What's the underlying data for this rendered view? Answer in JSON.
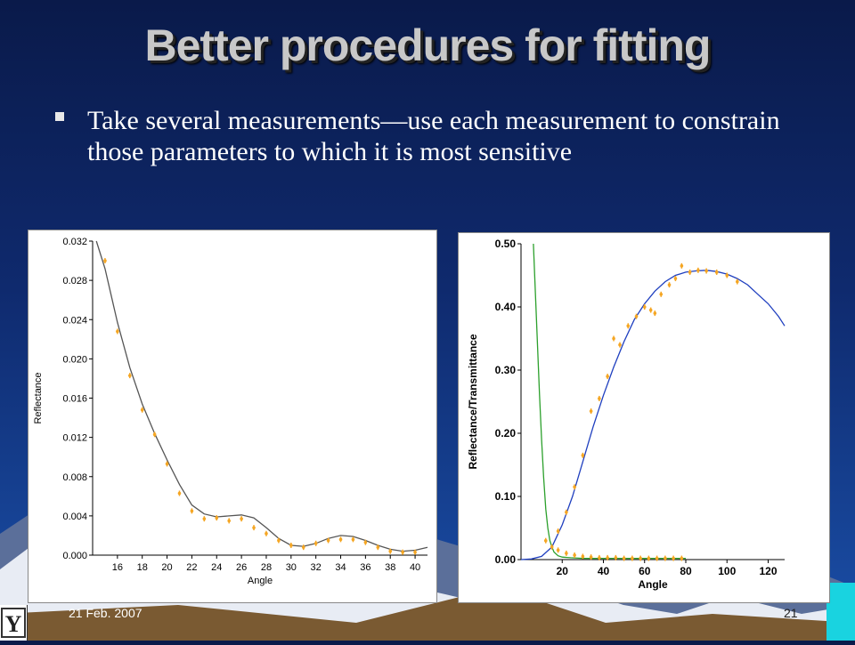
{
  "slide": {
    "title": "Better procedures for fitting",
    "bullet": "Take several measurements—use each measurement to constrain those parameters to which it is most sensitive",
    "footer_date": "21 Feb. 2007",
    "page_number": "21",
    "logo": "Y"
  },
  "colors": {
    "fit_line": "#555555",
    "data_points": "#f5a623",
    "reflectance_green": "#2ca02c",
    "transmittance_blue": "#1f3fbf"
  },
  "chart_data": [
    {
      "type": "scatter",
      "title": "",
      "xlabel": "Angle",
      "ylabel": "Reflectance",
      "xlim": [
        14,
        41
      ],
      "ylim": [
        0,
        0.032
      ],
      "x_ticks": [
        16,
        18,
        20,
        22,
        24,
        26,
        28,
        30,
        32,
        34,
        36,
        38,
        40
      ],
      "y_ticks": [
        "0.000",
        "0.004",
        "0.008",
        "0.012",
        "0.016",
        "0.020",
        "0.024",
        "0.028",
        "0.032"
      ],
      "series": [
        {
          "style": "line",
          "x": [
            14.3,
            15,
            16,
            17,
            18,
            19,
            20,
            21,
            22,
            23,
            24,
            25,
            26,
            27,
            28,
            29,
            30,
            31,
            32,
            33,
            34,
            35,
            36,
            37,
            38,
            39,
            40,
            41
          ],
          "y": [
            0.032,
            0.0292,
            0.0237,
            0.0191,
            0.0154,
            0.0124,
            0.0097,
            0.0072,
            0.0051,
            0.0042,
            0.0039,
            0.004,
            0.0041,
            0.0038,
            0.0028,
            0.0017,
            0.001,
            0.0009,
            0.0012,
            0.0017,
            0.002,
            0.0019,
            0.0015,
            0.001,
            0.0006,
            0.0004,
            0.0005,
            0.0008
          ]
        },
        {
          "style": "points",
          "x": [
            15,
            16,
            17,
            18,
            19,
            20,
            21,
            22,
            23,
            24,
            25,
            26,
            27,
            28,
            29,
            30,
            31,
            32,
            33,
            34,
            35,
            36,
            37,
            38,
            39,
            40
          ],
          "y": [
            0.03,
            0.0228,
            0.0183,
            0.0148,
            0.0123,
            0.0093,
            0.0063,
            0.0045,
            0.0037,
            0.0038,
            0.0035,
            0.0037,
            0.0028,
            0.0022,
            0.0015,
            0.001,
            0.0008,
            0.0012,
            0.0015,
            0.0016,
            0.0016,
            0.0013,
            0.0008,
            0.0004,
            0.0003,
            0.0003
          ]
        }
      ]
    },
    {
      "type": "scatter",
      "title": "",
      "xlabel": "Angle",
      "ylabel": "Reflectance/Transmittance",
      "xlim": [
        0,
        128
      ],
      "ylim": [
        0,
        0.5
      ],
      "x_ticks": [
        20,
        40,
        60,
        80,
        100,
        120
      ],
      "y_ticks": [
        "0.00",
        "0.10",
        "0.20",
        "0.30",
        "0.40",
        "0.50"
      ],
      "series": [
        {
          "style": "line",
          "color": "#2ca02c",
          "x": [
            6,
            7,
            8,
            9,
            10,
            11,
            12,
            13,
            14,
            15,
            16,
            18,
            20,
            24,
            30,
            40,
            60,
            80
          ],
          "y": [
            0.5,
            0.42,
            0.34,
            0.26,
            0.19,
            0.13,
            0.08,
            0.05,
            0.03,
            0.02,
            0.012,
            0.006,
            0.004,
            0.003,
            0.002,
            0.002,
            0.002,
            0.002
          ]
        },
        {
          "style": "line",
          "color": "#1f3fbf",
          "x": [
            0,
            5,
            10,
            15,
            20,
            25,
            30,
            35,
            40,
            45,
            50,
            55,
            60,
            65,
            70,
            75,
            80,
            85,
            90,
            95,
            100,
            105,
            110,
            115,
            120,
            125,
            128
          ],
          "y": [
            0,
            0.001,
            0.005,
            0.02,
            0.055,
            0.1,
            0.155,
            0.21,
            0.26,
            0.305,
            0.345,
            0.38,
            0.405,
            0.425,
            0.44,
            0.45,
            0.455,
            0.457,
            0.458,
            0.456,
            0.452,
            0.445,
            0.435,
            0.42,
            0.405,
            0.385,
            0.37
          ]
        },
        {
          "style": "points",
          "x": [
            12,
            15,
            18,
            22,
            26,
            30,
            34,
            38,
            42,
            46,
            50,
            54,
            58,
            62,
            66,
            70,
            74,
            78
          ],
          "y": [
            0.03,
            0.02,
            0.015,
            0.01,
            0.007,
            0.005,
            0.004,
            0.003,
            0.003,
            0.003,
            0.002,
            0.002,
            0.002,
            0.002,
            0.002,
            0.002,
            0.002,
            0.002
          ]
        },
        {
          "style": "points",
          "x": [
            18,
            22,
            26,
            30,
            34,
            38,
            42,
            45,
            48,
            52,
            56,
            60,
            63,
            65,
            68,
            72,
            75,
            78,
            82,
            86,
            90,
            95,
            100,
            105
          ],
          "y": [
            0.045,
            0.075,
            0.115,
            0.165,
            0.235,
            0.255,
            0.29,
            0.35,
            0.34,
            0.37,
            0.385,
            0.4,
            0.395,
            0.39,
            0.42,
            0.435,
            0.445,
            0.465,
            0.455,
            0.458,
            0.457,
            0.455,
            0.45,
            0.44
          ]
        }
      ]
    }
  ]
}
